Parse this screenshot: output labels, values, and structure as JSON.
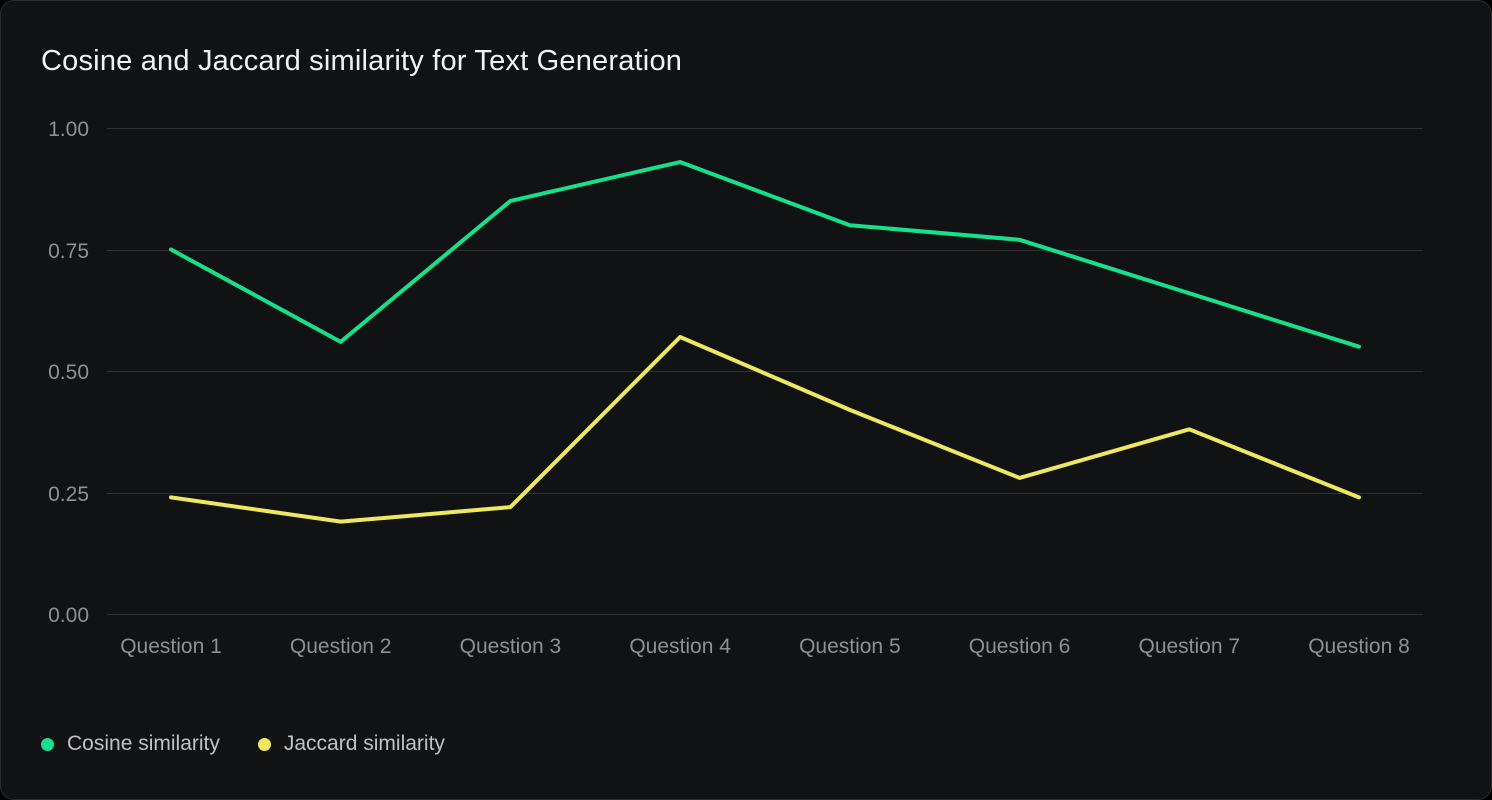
{
  "theme": {
    "page_background": "#000000",
    "card_background": "#111213",
    "card_border": "#2b2b2e",
    "grid_color": "#303033",
    "tick_label_color": "#8f8f95",
    "title_color": "#f2f2f3",
    "legend_text_color": "#c1c1c6"
  },
  "chart_data": {
    "type": "line",
    "title": "Cosine and Jaccard similarity for Text Generation",
    "categories": [
      "Question 1",
      "Question 2",
      "Question 3",
      "Question 4",
      "Question 5",
      "Question 6",
      "Question 7",
      "Question 8"
    ],
    "series": [
      {
        "name": "Cosine similarity",
        "color": "#17e08c",
        "values": [
          0.75,
          0.56,
          0.85,
          0.93,
          0.8,
          0.77,
          0.66,
          0.55
        ]
      },
      {
        "name": "Jaccard similarity",
        "color": "#eee861",
        "values": [
          0.24,
          0.19,
          0.22,
          0.57,
          0.42,
          0.28,
          0.38,
          0.24
        ]
      }
    ],
    "xlabel": "",
    "ylabel": "",
    "ylim": [
      0,
      1
    ],
    "yticks": [
      {
        "value": 0.0,
        "label": "0.00"
      },
      {
        "value": 0.25,
        "label": "0.25"
      },
      {
        "value": 0.5,
        "label": "0.50"
      },
      {
        "value": 0.75,
        "label": "0.75"
      },
      {
        "value": 1.0,
        "label": "1.00"
      }
    ],
    "grid": "horizontal",
    "legend_position": "bottom-left"
  }
}
